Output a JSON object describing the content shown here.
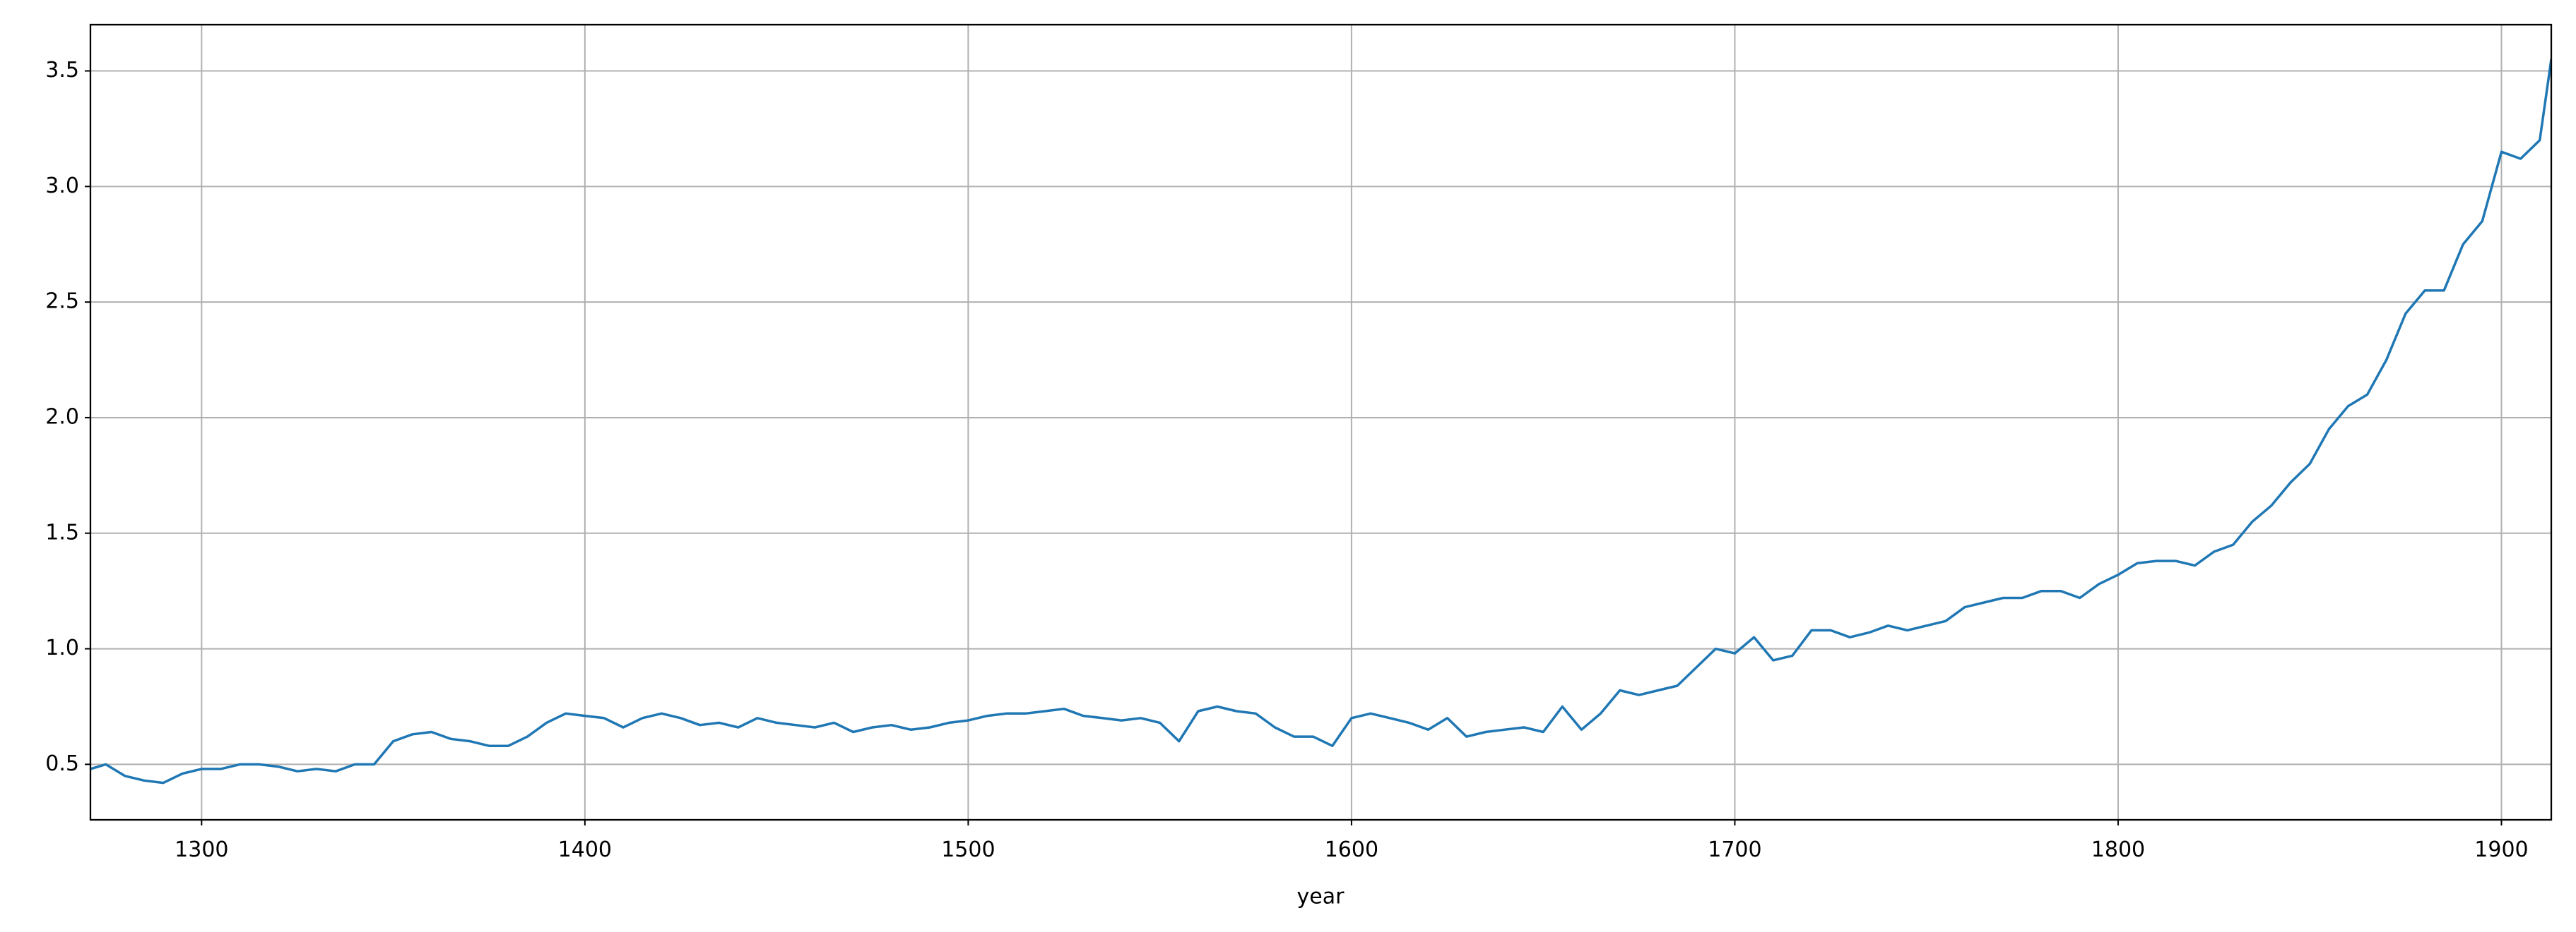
{
  "chart_data": {
    "type": "line",
    "xlabel": "year",
    "x": [
      1271,
      1275,
      1280,
      1285,
      1290,
      1295,
      1300,
      1305,
      1310,
      1315,
      1320,
      1325,
      1330,
      1335,
      1340,
      1345,
      1350,
      1355,
      1360,
      1365,
      1370,
      1375,
      1380,
      1385,
      1390,
      1395,
      1400,
      1405,
      1410,
      1415,
      1420,
      1425,
      1430,
      1435,
      1440,
      1445,
      1450,
      1455,
      1460,
      1465,
      1470,
      1475,
      1480,
      1485,
      1490,
      1495,
      1500,
      1505,
      1510,
      1515,
      1520,
      1525,
      1530,
      1535,
      1540,
      1545,
      1550,
      1555,
      1560,
      1565,
      1570,
      1575,
      1580,
      1585,
      1590,
      1595,
      1600,
      1605,
      1610,
      1615,
      1620,
      1625,
      1630,
      1635,
      1640,
      1645,
      1650,
      1655,
      1660,
      1665,
      1670,
      1675,
      1680,
      1685,
      1690,
      1695,
      1700,
      1705,
      1710,
      1715,
      1720,
      1725,
      1730,
      1735,
      1740,
      1745,
      1750,
      1755,
      1760,
      1765,
      1770,
      1775,
      1780,
      1785,
      1790,
      1795,
      1800,
      1805,
      1810,
      1815,
      1820,
      1825,
      1830,
      1835,
      1840,
      1845,
      1850,
      1855,
      1860,
      1865,
      1870,
      1875,
      1880,
      1885,
      1890,
      1895,
      1900,
      1905,
      1910,
      1913
    ],
    "series": [
      {
        "color": "#1f77b4",
        "values": [
          0.48,
          0.5,
          0.45,
          0.43,
          0.42,
          0.46,
          0.48,
          0.48,
          0.5,
          0.5,
          0.49,
          0.47,
          0.48,
          0.47,
          0.5,
          0.5,
          0.6,
          0.63,
          0.64,
          0.61,
          0.6,
          0.58,
          0.58,
          0.62,
          0.68,
          0.72,
          0.71,
          0.7,
          0.66,
          0.7,
          0.72,
          0.7,
          0.67,
          0.68,
          0.66,
          0.7,
          0.68,
          0.67,
          0.66,
          0.68,
          0.64,
          0.66,
          0.67,
          0.65,
          0.66,
          0.68,
          0.69,
          0.71,
          0.72,
          0.72,
          0.73,
          0.74,
          0.71,
          0.7,
          0.69,
          0.7,
          0.68,
          0.6,
          0.73,
          0.75,
          0.73,
          0.72,
          0.66,
          0.62,
          0.62,
          0.58,
          0.7,
          0.72,
          0.7,
          0.68,
          0.65,
          0.7,
          0.62,
          0.64,
          0.65,
          0.66,
          0.64,
          0.75,
          0.65,
          0.72,
          0.82,
          0.8,
          0.82,
          0.84,
          0.92,
          1.0,
          0.98,
          1.05,
          0.95,
          0.97,
          1.08,
          1.08,
          1.05,
          1.07,
          1.1,
          1.08,
          1.1,
          1.12,
          1.18,
          1.2,
          1.22,
          1.22,
          1.25,
          1.25,
          1.22,
          1.28,
          1.32,
          1.37,
          1.38,
          1.38,
          1.36,
          1.42,
          1.45,
          1.55,
          1.62,
          1.72,
          1.8,
          1.95,
          2.05,
          2.1,
          2.25,
          2.45,
          2.55,
          2.55,
          2.75,
          2.85,
          3.15,
          3.12,
          3.2,
          3.55
        ]
      }
    ],
    "xlim": [
      1271,
      1913
    ],
    "ylim": [
      0.26,
      3.7
    ],
    "xticks": [
      1300,
      1400,
      1500,
      1600,
      1700,
      1800,
      1900
    ],
    "yticks": [
      0.5,
      {
        "value": 1,
        "label": "1.0"
      },
      1.5,
      {
        "value": 2,
        "label": "2.0"
      },
      2.5,
      {
        "value": 3,
        "label": "3.0"
      },
      3.5
    ],
    "grid": true
  }
}
